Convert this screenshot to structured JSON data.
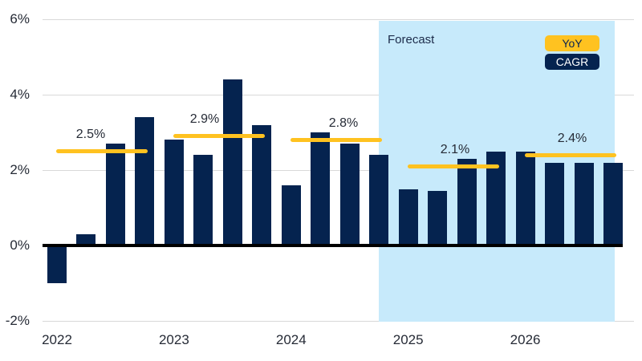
{
  "legend": {
    "position": "top-right, inside forecast region",
    "items": [
      {
        "label": "YoY",
        "bg": "#FFC220",
        "text_color": "#0A2450"
      },
      {
        "label": "CAGR",
        "bg": "#05234F",
        "text_color": "#FFFFFF"
      }
    ]
  },
  "colors": {
    "bar": "#05234F",
    "annual_line": "#FFC220",
    "forecast_bg": "#C7EAFB",
    "gridline": "#D9D9D9",
    "zero_line": "#000000",
    "text": "#262B36",
    "forecast_label_text": "#1C2B4A",
    "background": "#FFFFFF"
  },
  "chart_data": {
    "type": "bar",
    "unit": "percent",
    "title": "",
    "xlabel": "",
    "ylabel": "",
    "ylim": [
      -2,
      6
    ],
    "grid": "horizontal gridlines every 2%",
    "y_ticks": [
      {
        "value": 6,
        "label": "6%"
      },
      {
        "value": 4,
        "label": "4%"
      },
      {
        "value": 2,
        "label": "2%"
      },
      {
        "value": 0,
        "label": "0%"
      },
      {
        "value": -2,
        "label": "-2%"
      }
    ],
    "x_tick_labels": [
      "2022",
      "2023",
      "2024",
      "2025",
      "2026"
    ],
    "categories": [
      "2022 Q1",
      "2022 Q2",
      "2022 Q3",
      "2022 Q4",
      "2023 Q1",
      "2023 Q2",
      "2023 Q3",
      "2023 Q4",
      "2024 Q1",
      "2024 Q2",
      "2024 Q3",
      "2024 Q4",
      "2025 Q1",
      "2025 Q2",
      "2025 Q3",
      "2025 Q4",
      "2026 Q1",
      "2026 Q2",
      "2026 Q3",
      "2026 Q4"
    ],
    "series": [
      {
        "name": "quarterly-bars-navy",
        "legend_label": "CAGR",
        "type": "bar",
        "values": [
          -1.0,
          0.3,
          2.7,
          3.4,
          2.8,
          2.4,
          4.4,
          3.2,
          1.6,
          3.0,
          2.7,
          2.4,
          1.5,
          1.45,
          2.3,
          2.5,
          2.5,
          2.2,
          2.2,
          2.2
        ]
      },
      {
        "name": "annual-lines-yellow",
        "legend_label": "YoY",
        "type": "horizontal-line-per-year",
        "per_year": [
          {
            "year": "2022",
            "value": 2.5,
            "label": "2.5%"
          },
          {
            "year": "2023",
            "value": 2.9,
            "label": "2.9%"
          },
          {
            "year": "2024",
            "value": 2.8,
            "label": "2.8%"
          },
          {
            "year": "2025",
            "value": 2.1,
            "label": "2.1%"
          },
          {
            "year": "2026",
            "value": 2.4,
            "label": "2.4%"
          }
        ]
      }
    ],
    "forecast_region": {
      "label": "Forecast",
      "starts_at_category": "2024 Q4",
      "ends_at_category": "2026 Q4"
    }
  }
}
